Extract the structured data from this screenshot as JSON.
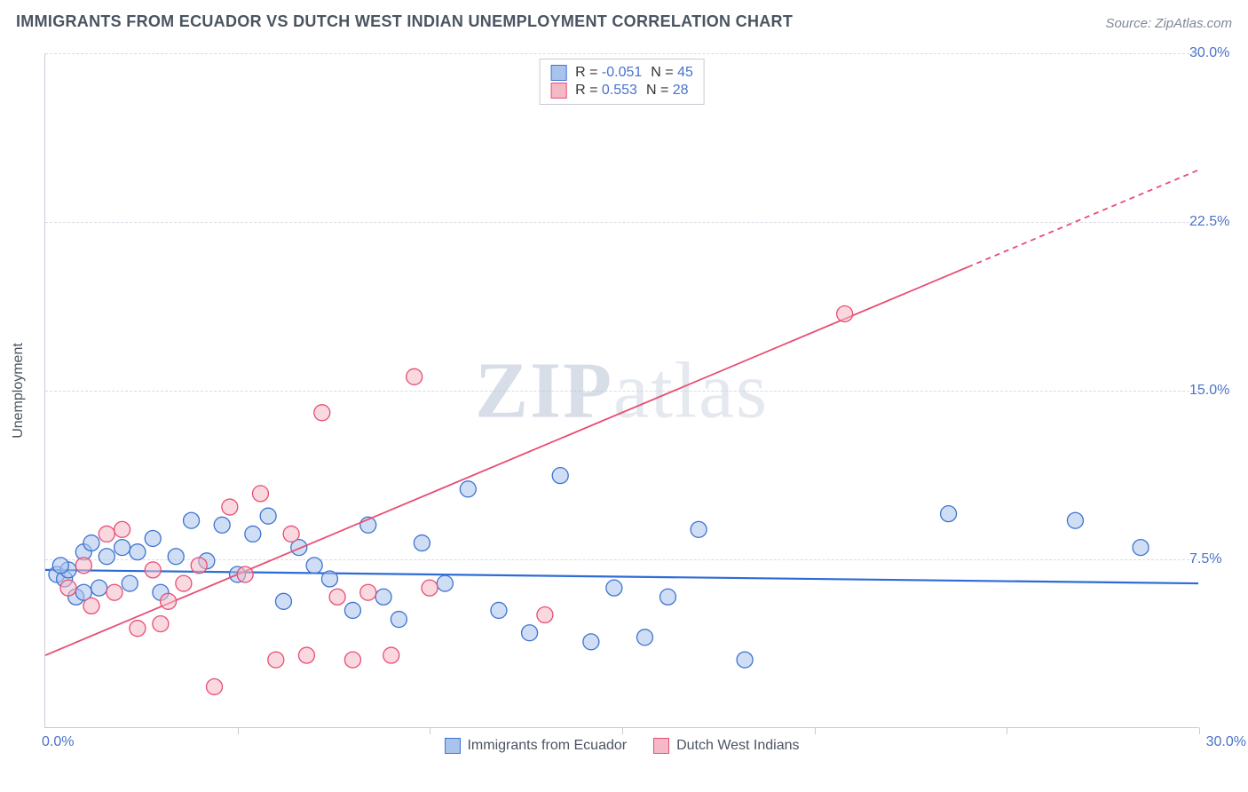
{
  "title": "IMMIGRANTS FROM ECUADOR VS DUTCH WEST INDIAN UNEMPLOYMENT CORRELATION CHART",
  "source": "Source: ZipAtlas.com",
  "watermark_bold": "ZIP",
  "watermark_light": "atlas",
  "y_axis_title": "Unemployment",
  "x_min_label": "0.0%",
  "x_max_label": "30.0%",
  "legend_bottom": {
    "s1": "Immigrants from Ecuador",
    "s2": "Dutch West Indians"
  },
  "legend_top": {
    "r_label": "R =",
    "n_label": "N =",
    "s1_r": "-0.051",
    "s1_n": "45",
    "s2_r": "0.553",
    "s2_n": "28"
  },
  "chart": {
    "type": "scatter",
    "xlim": [
      0,
      30
    ],
    "ylim": [
      0,
      30
    ],
    "y_ticks": [
      7.5,
      15.0,
      22.5,
      30.0
    ],
    "y_tick_labels": [
      "7.5%",
      "15.0%",
      "22.5%",
      "30.0%"
    ],
    "x_tick_positions": [
      5,
      10,
      15,
      20,
      25,
      30
    ],
    "background_color": "#ffffff",
    "grid_color": "#d7dbe3",
    "axis_color": "#c6cbd4",
    "axis_label_color": "#4a72c9",
    "text_color": "#4a5460",
    "series": [
      {
        "name": "Immigrants from Ecuador",
        "color_fill": "#a9c3ec",
        "color_stroke": "#3d73d0",
        "marker_radius": 9,
        "fill_opacity": 0.55,
        "line": {
          "m": -0.02,
          "b": 7.0,
          "width": 2.2,
          "color": "#2e6bd6",
          "x0": 0,
          "x1": 30
        },
        "points": [
          [
            0.3,
            6.8
          ],
          [
            0.5,
            6.6
          ],
          [
            0.6,
            7.0
          ],
          [
            0.8,
            5.8
          ],
          [
            1.0,
            7.8
          ],
          [
            1.2,
            8.2
          ],
          [
            1.4,
            6.2
          ],
          [
            1.6,
            7.6
          ],
          [
            2.0,
            8.0
          ],
          [
            2.2,
            6.4
          ],
          [
            2.4,
            7.8
          ],
          [
            2.8,
            8.4
          ],
          [
            3.0,
            6.0
          ],
          [
            3.4,
            7.6
          ],
          [
            3.8,
            9.2
          ],
          [
            4.2,
            7.4
          ],
          [
            4.6,
            9.0
          ],
          [
            5.0,
            6.8
          ],
          [
            5.4,
            8.6
          ],
          [
            5.8,
            9.4
          ],
          [
            6.2,
            5.6
          ],
          [
            6.6,
            8.0
          ],
          [
            7.0,
            7.2
          ],
          [
            7.4,
            6.6
          ],
          [
            8.0,
            5.2
          ],
          [
            8.4,
            9.0
          ],
          [
            8.8,
            5.8
          ],
          [
            9.2,
            4.8
          ],
          [
            9.8,
            8.2
          ],
          [
            10.4,
            6.4
          ],
          [
            11.0,
            10.6
          ],
          [
            11.8,
            5.2
          ],
          [
            12.6,
            4.2
          ],
          [
            13.4,
            11.2
          ],
          [
            14.2,
            3.8
          ],
          [
            14.8,
            6.2
          ],
          [
            15.6,
            4.0
          ],
          [
            16.2,
            5.8
          ],
          [
            17.0,
            8.8
          ],
          [
            18.2,
            3.0
          ],
          [
            23.5,
            9.5
          ],
          [
            26.8,
            9.2
          ],
          [
            28.5,
            8.0
          ],
          [
            1.0,
            6.0
          ],
          [
            0.4,
            7.2
          ]
        ]
      },
      {
        "name": "Dutch West Indians",
        "color_fill": "#f4b9c5",
        "color_stroke": "#e84d73",
        "marker_radius": 9,
        "fill_opacity": 0.55,
        "line": {
          "m": 0.72,
          "b": 3.2,
          "width": 1.8,
          "color": "#e84d73",
          "x0": 0,
          "x1": 30,
          "dash_from": 24
        },
        "points": [
          [
            0.6,
            6.2
          ],
          [
            1.0,
            7.2
          ],
          [
            1.2,
            5.4
          ],
          [
            1.6,
            8.6
          ],
          [
            1.8,
            6.0
          ],
          [
            2.0,
            8.8
          ],
          [
            2.4,
            4.4
          ],
          [
            2.8,
            7.0
          ],
          [
            3.2,
            5.6
          ],
          [
            3.6,
            6.4
          ],
          [
            4.0,
            7.2
          ],
          [
            4.4,
            1.8
          ],
          [
            4.8,
            9.8
          ],
          [
            5.2,
            6.8
          ],
          [
            5.6,
            10.4
          ],
          [
            6.0,
            3.0
          ],
          [
            6.4,
            8.6
          ],
          [
            6.8,
            3.2
          ],
          [
            7.2,
            14.0
          ],
          [
            7.6,
            5.8
          ],
          [
            8.0,
            3.0
          ],
          [
            8.4,
            6.0
          ],
          [
            9.0,
            3.2
          ],
          [
            9.6,
            15.6
          ],
          [
            10.0,
            6.2
          ],
          [
            13.0,
            5.0
          ],
          [
            20.8,
            18.4
          ],
          [
            3.0,
            4.6
          ]
        ]
      }
    ]
  }
}
